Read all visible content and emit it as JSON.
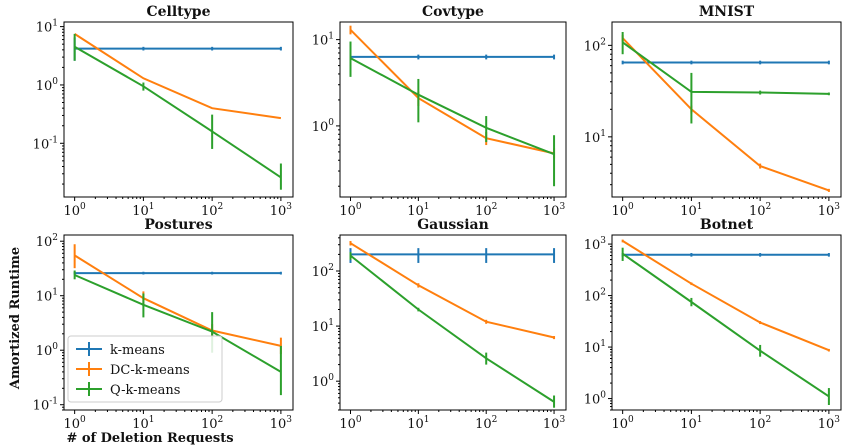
{
  "figure": {
    "ylabel": "Amortized Runtime",
    "xlabel": "# of Deletion Requests"
  },
  "legend": {
    "placement": "lower-left of Postures panel",
    "entries": [
      {
        "name": "k-means",
        "color": "#1f77b4"
      },
      {
        "name": "DC-k-means",
        "color": "#ff7f0e"
      },
      {
        "name": "Q-k-means",
        "color": "#2ca02c"
      }
    ]
  },
  "chart_data": [
    {
      "type": "line",
      "title": "Celltype",
      "xscale": "log",
      "yscale": "log",
      "x": [
        1,
        10,
        100,
        1000
      ],
      "xlim": [
        0.7,
        1500
      ],
      "ylim": [
        0.012,
        12
      ],
      "yticks": [
        {
          "base": "10",
          "exp": "-1",
          "v": 0.1
        },
        {
          "base": "10",
          "exp": "0",
          "v": 1
        },
        {
          "base": "10",
          "exp": "1",
          "v": 10
        }
      ],
      "series": [
        {
          "name": "k-means",
          "values": [
            4.2,
            4.2,
            4.2,
            4.2
          ],
          "err": [
            [
              2.6,
              6.5
            ],
            [
              3.9,
              4.5
            ],
            [
              3.9,
              4.5
            ],
            [
              3.9,
              4.5
            ]
          ]
        },
        {
          "name": "DC-k-means",
          "values": [
            7.5,
            1.3,
            0.4,
            0.27
          ],
          "err": null
        },
        {
          "name": "Q-k-means",
          "values": [
            4.5,
            0.95,
            0.16,
            0.026
          ],
          "err": [
            [
              2.6,
              7.5
            ],
            [
              0.8,
              1.1
            ],
            [
              0.08,
              0.31
            ],
            [
              0.016,
              0.045
            ]
          ]
        }
      ]
    },
    {
      "type": "line",
      "title": "Covtype",
      "xscale": "log",
      "yscale": "log",
      "x": [
        1,
        10,
        100,
        1000
      ],
      "xlim": [
        0.7,
        1500
      ],
      "ylim": [
        0.15,
        16
      ],
      "yticks": [
        {
          "base": "10",
          "exp": "0",
          "v": 1
        },
        {
          "base": "10",
          "exp": "1",
          "v": 10
        }
      ],
      "series": [
        {
          "name": "k-means",
          "values": [
            6.3,
            6.3,
            6.3,
            6.3
          ],
          "err": [
            [
              5.9,
              6.7
            ],
            [
              5.9,
              6.7
            ],
            [
              5.9,
              6.7
            ],
            [
              5.9,
              6.7
            ]
          ]
        },
        {
          "name": "DC-k-means",
          "values": [
            13,
            2.1,
            0.72,
            0.48
          ],
          "err": [
            [
              11.5,
              14.5
            ],
            [
              1.7,
              2.5
            ],
            [
              0.6,
              0.85
            ],
            [
              0.42,
              0.55
            ]
          ]
        },
        {
          "name": "Q-k-means",
          "values": [
            6.1,
            2.3,
            0.95,
            0.47
          ],
          "err": [
            [
              3.7,
              9.5
            ],
            [
              1.1,
              3.5
            ],
            [
              0.65,
              1.3
            ],
            [
              0.2,
              0.78
            ]
          ]
        }
      ]
    },
    {
      "type": "line",
      "title": "MNIST",
      "xscale": "log",
      "yscale": "log",
      "x": [
        1,
        10,
        100,
        1000
      ],
      "xlim": [
        0.7,
        1500
      ],
      "ylim": [
        2.2,
        180
      ],
      "yticks": [
        {
          "base": "10",
          "exp": "1",
          "v": 10
        },
        {
          "base": "10",
          "exp": "2",
          "v": 100
        }
      ],
      "series": [
        {
          "name": "k-means",
          "values": [
            65,
            65,
            65,
            65
          ],
          "err": [
            [
              62,
              68
            ],
            [
              62,
              68
            ],
            [
              62,
              68
            ],
            [
              62,
              68
            ]
          ]
        },
        {
          "name": "DC-k-means",
          "values": [
            120,
            20,
            4.8,
            2.6
          ],
          "err": [
            [
              110,
              130
            ],
            [
              18,
              22
            ],
            [
              4.5,
              5.1
            ],
            [
              2.5,
              2.7
            ]
          ]
        },
        {
          "name": "Q-k-means",
          "values": [
            108,
            31,
            30.5,
            29.5
          ],
          "err": [
            [
              80,
              140
            ],
            [
              14,
              50
            ],
            [
              29,
              32
            ],
            [
              28.5,
              30.5
            ]
          ]
        }
      ]
    },
    {
      "type": "line",
      "title": "Postures",
      "xscale": "log",
      "yscale": "log",
      "x": [
        1,
        10,
        100,
        1000
      ],
      "xlim": [
        0.7,
        1500
      ],
      "ylim": [
        0.08,
        130
      ],
      "yticks": [
        {
          "base": "10",
          "exp": "-1",
          "v": 0.1
        },
        {
          "base": "10",
          "exp": "0",
          "v": 1
        },
        {
          "base": "10",
          "exp": "1",
          "v": 10
        },
        {
          "base": "10",
          "exp": "2",
          "v": 100
        }
      ],
      "series": [
        {
          "name": "k-means",
          "values": [
            26,
            26,
            26,
            26
          ],
          "err": [
            [
              24.5,
              27.5
            ],
            [
              24.5,
              27.5
            ],
            [
              24.5,
              27.5
            ],
            [
              24.5,
              27.5
            ]
          ]
        },
        {
          "name": "DC-k-means",
          "values": [
            55,
            9,
            2.3,
            1.2
          ],
          "err": [
            [
              32,
              88
            ],
            [
              6.5,
              12
            ],
            [
              1.8,
              3
            ],
            [
              0.85,
              1.7
            ]
          ]
        },
        {
          "name": "Q-k-means",
          "values": [
            24,
            6.8,
            2.2,
            0.4
          ],
          "err": [
            [
              20,
              29
            ],
            [
              4,
              11
            ],
            [
              0.9,
              5
            ],
            [
              0.15,
              1.2
            ]
          ]
        }
      ]
    },
    {
      "type": "line",
      "title": "Gaussian",
      "xscale": "log",
      "yscale": "log",
      "x": [
        1,
        10,
        100,
        1000
      ],
      "xlim": [
        0.7,
        1500
      ],
      "ylim": [
        0.3,
        450
      ],
      "yticks": [
        {
          "base": "10",
          "exp": "0",
          "v": 1
        },
        {
          "base": "10",
          "exp": "1",
          "v": 10
        },
        {
          "base": "10",
          "exp": "2",
          "v": 100
        }
      ],
      "series": [
        {
          "name": "k-means",
          "values": [
            200,
            200,
            200,
            200
          ],
          "err": [
            [
              140,
              260
            ],
            [
              140,
              260
            ],
            [
              140,
              260
            ],
            [
              140,
              260
            ]
          ]
        },
        {
          "name": "DC-k-means",
          "values": [
            320,
            55,
            12,
            6.2
          ],
          "err": [
            [
              290,
              350
            ],
            [
              50,
              60
            ],
            [
              11,
              13
            ],
            [
              5.8,
              6.6
            ]
          ]
        },
        {
          "name": "Q-k-means",
          "values": [
            190,
            20,
            2.6,
            0.42
          ],
          "err": [
            [
              160,
              220
            ],
            [
              18.5,
              21.5
            ],
            [
              2,
              3.3
            ],
            [
              0.33,
              0.55
            ]
          ]
        }
      ]
    },
    {
      "type": "line",
      "title": "Botnet",
      "xscale": "log",
      "yscale": "log",
      "x": [
        1,
        10,
        100,
        1000
      ],
      "xlim": [
        0.7,
        1500
      ],
      "ylim": [
        0.6,
        1500
      ],
      "yticks": [
        {
          "base": "10",
          "exp": "0",
          "v": 1
        },
        {
          "base": "10",
          "exp": "1",
          "v": 10
        },
        {
          "base": "10",
          "exp": "2",
          "v": 100
        },
        {
          "base": "10",
          "exp": "3",
          "v": 1000
        }
      ],
      "series": [
        {
          "name": "k-means",
          "values": [
            620,
            620,
            620,
            620
          ],
          "err": [
            [
              570,
              670
            ],
            [
              570,
              670
            ],
            [
              570,
              670
            ],
            [
              570,
              670
            ]
          ]
        },
        {
          "name": "DC-k-means",
          "values": [
            1150,
            170,
            30,
            8.7
          ],
          "err": [
            [
              1080,
              1220
            ],
            [
              160,
              180
            ],
            [
              28,
              32
            ],
            [
              8.2,
              9.2
            ]
          ]
        },
        {
          "name": "Q-k-means",
          "values": [
            650,
            75,
            8.5,
            1.1
          ],
          "err": [
            [
              470,
              850
            ],
            [
              62,
              90
            ],
            [
              6.5,
              11
            ],
            [
              0.75,
              1.6
            ]
          ]
        }
      ]
    }
  ]
}
